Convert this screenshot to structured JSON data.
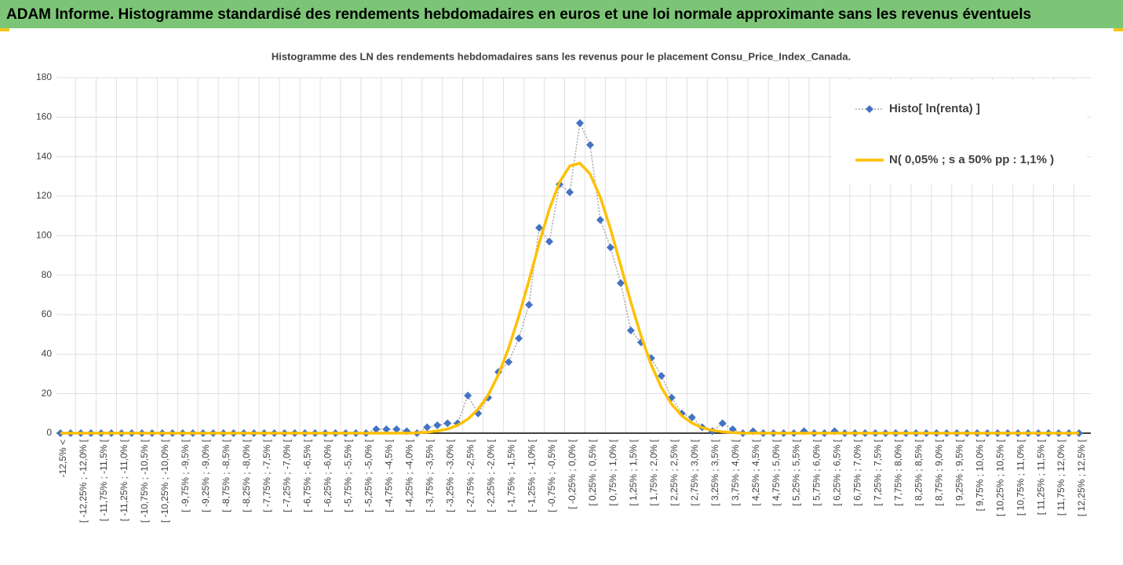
{
  "header": {
    "title": "ADAM Informe. Histogramme standardisé des rendements hebdomadaires en euros et une loi normale approximante sans les revenus éventuels"
  },
  "chart_data": {
    "type": "line",
    "title": "Histogramme des LN des rendements hebdomadaires sans les revenus pour le placement Consu_Price_Index_Canada.",
    "categories": [
      "-12,5% <",
      null,
      "[ -12,25% ; -12,0% [",
      null,
      "[ -11,75% ; -11,5% [",
      null,
      "[ -11,25% ; -11,0% [",
      null,
      "[ -10,75% ; -10,5% [",
      null,
      "[ -10,25% ; -10,0% [",
      null,
      "[ -9,75% ; -9,5% [",
      null,
      "[ -9,25% ; -9,0% [",
      null,
      "[ -8,75% ; -8,5% [",
      null,
      "[ -8,25% ; -8,0% [",
      null,
      "[ -7,75% ; -7,5% [",
      null,
      "[ -7,25% ; -7,0% [",
      null,
      "[ -6,75% ; -6,5% [",
      null,
      "[ -6,25% ; -6,0% [",
      null,
      "[ -5,75% ; -5,5% [",
      null,
      "[ -5,25% ; -5,0% [",
      null,
      "[ -4,75% ; -4,5% [",
      null,
      "[ -4,25% ; -4,0% [",
      null,
      "[ -3,75% ; -3,5% [",
      null,
      "[ -3,25% ; -3,0% [",
      null,
      "[ -2,75% ; -2,5% [",
      null,
      "[ -2,25% ; -2,0% [",
      null,
      "[ -1,75% ; -1,5% [",
      null,
      "[ -1,25% ; -1,0% [",
      null,
      "[ -0,75% ; -0,5% [",
      null,
      "[ -0,25% ; 0,0% [",
      null,
      "[ 0,25% ; 0,5% [",
      null,
      "[ 0,75% ; 1,0% [",
      null,
      "[ 1,25% ; 1,5% [",
      null,
      "[ 1,75% ; 2,0% [",
      null,
      "[ 2,25% ; 2,5% [",
      null,
      "[ 2,75% ; 3,0% [",
      null,
      "[ 3,25% ; 3,5% [",
      null,
      "[ 3,75% ; 4,0% [",
      null,
      "[ 4,25% ; 4,5% [",
      null,
      "[ 4,75% ; 5,0% [",
      null,
      "[ 5,25% ; 5,5% [",
      null,
      "[ 5,75% ; 6,0% [",
      null,
      "[ 6,25% ; 6,5% [",
      null,
      "[ 6,75% ; 7,0% [",
      null,
      "[ 7,25% ; 7,5% [",
      null,
      "[ 7,75% ; 8,0% [",
      null,
      "[ 8,25% ; 8,5% [",
      null,
      "[ 8,75% ; 9,0% [",
      null,
      "[ 9,25% ; 9,5% [",
      null,
      "[ 9,75% ; 10,0% [",
      null,
      "[ 10,25% ; 10,5% [",
      null,
      "[ 10,75% ; 11,0% [",
      null,
      "[ 11,25% ; 11,5% [",
      null,
      "[ 11,75% ; 12,0% [",
      null,
      "[ 12,25% ; 12,5% ["
    ],
    "series": [
      {
        "name": "Histo[ ln(renta) ]",
        "color": "#4472c4",
        "values": [
          0,
          0,
          0,
          0,
          0,
          0,
          0,
          0,
          0,
          0,
          0,
          0,
          0,
          0,
          0,
          0,
          0,
          0,
          0,
          0,
          0,
          0,
          0,
          0,
          0,
          0,
          0,
          0,
          0,
          0,
          0,
          2,
          2,
          2,
          1,
          0,
          3,
          4,
          5,
          5,
          19,
          10,
          18,
          31,
          36,
          48,
          65,
          104,
          97,
          126,
          122,
          157,
          146,
          108,
          94,
          76,
          52,
          46,
          38,
          29,
          18,
          10,
          8,
          3,
          1,
          5,
          2,
          0,
          1,
          0,
          0,
          0,
          0,
          1,
          0,
          0,
          1,
          0,
          0,
          0,
          0,
          0,
          0,
          0,
          0,
          0,
          0,
          0,
          0,
          0,
          0,
          0,
          0,
          0,
          0,
          0,
          0,
          0,
          0,
          0,
          0
        ]
      },
      {
        "name": "N( 0,05% ; s a 50% pp : 1,1% )",
        "color": "#ffc000",
        "values": [
          0,
          0,
          0,
          0,
          0,
          0,
          0,
          0,
          0,
          0,
          0,
          0,
          0,
          0,
          0,
          0,
          0,
          0,
          0,
          0,
          0,
          0,
          0,
          0,
          0,
          0,
          0,
          0,
          0,
          0,
          0,
          0,
          0,
          0,
          0,
          0.2,
          0.5,
          1.1,
          2.1,
          4,
          7.1,
          12.1,
          19.4,
          29.6,
          43,
          59.2,
          77.4,
          96.2,
          113.5,
          127.1,
          135.3,
          136.7,
          131.2,
          119.5,
          103.4,
          85,
          66.3,
          49.2,
          34.6,
          23.1,
          14.7,
          8.8,
          5.1,
          2.8,
          1.4,
          0.7,
          0.3,
          0,
          0,
          0,
          0,
          0,
          0,
          0,
          0,
          0,
          0,
          0,
          0,
          0,
          0,
          0,
          0,
          0,
          0,
          0,
          0,
          0,
          0,
          0,
          0,
          0,
          0,
          0,
          0,
          0,
          0,
          0,
          0,
          0,
          0
        ]
      }
    ],
    "ylim": [
      0,
      180
    ],
    "yticks": [
      0,
      20,
      40,
      60,
      80,
      100,
      120,
      140,
      160,
      180
    ],
    "grid": true,
    "legend": "top-right"
  }
}
